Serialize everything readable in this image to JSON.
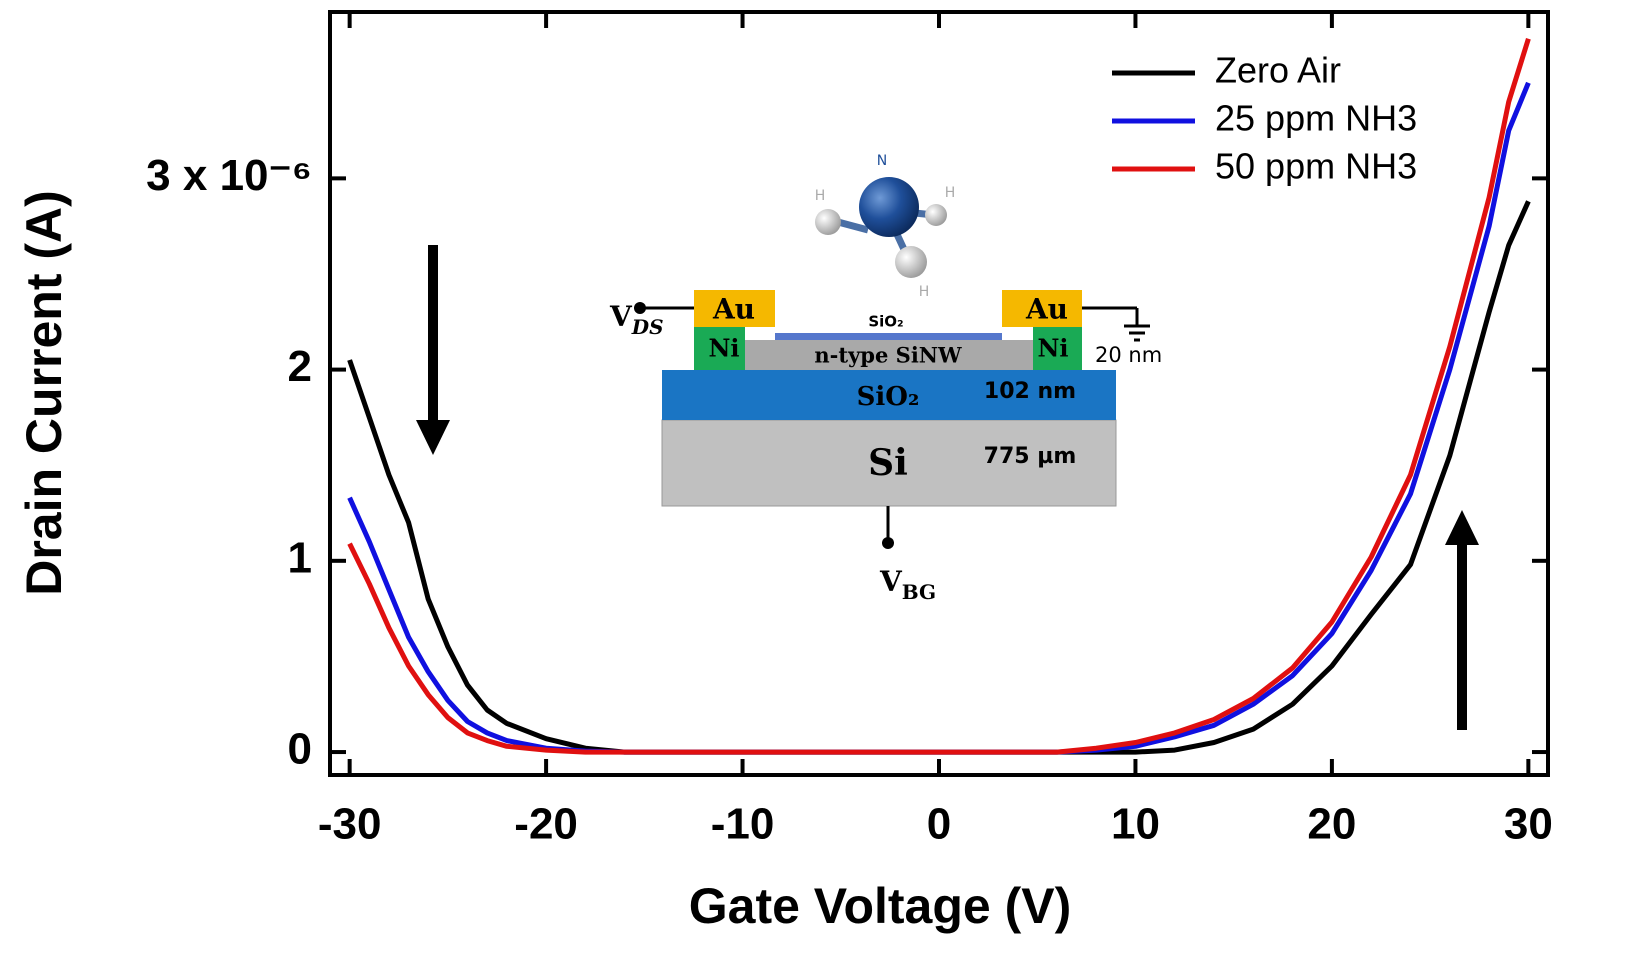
{
  "chart_data": {
    "type": "line",
    "xlabel": "Gate Voltage (V)",
    "ylabel": "Drain Current (A)",
    "x": [
      -30,
      -29,
      -28,
      -27,
      -26,
      -25,
      -24,
      -23,
      -22,
      -20,
      -18,
      -16,
      -10,
      0,
      6,
      8,
      10,
      12,
      14,
      16,
      18,
      20,
      22,
      24,
      26,
      28,
      29,
      30
    ],
    "series": [
      {
        "name": "Zero Air",
        "color": "#000000",
        "values": [
          2.05,
          1.75,
          1.45,
          1.2,
          0.8,
          0.55,
          0.35,
          0.22,
          0.15,
          0.07,
          0.02,
          0,
          0,
          0,
          0,
          0,
          0,
          0.01,
          0.05,
          0.12,
          0.25,
          0.45,
          0.72,
          0.98,
          1.55,
          2.3,
          2.65,
          2.88
        ]
      },
      {
        "name": "25 ppm NH3",
        "color": "#1010e0",
        "values": [
          1.33,
          1.1,
          0.85,
          0.6,
          0.42,
          0.27,
          0.16,
          0.1,
          0.06,
          0.02,
          0.005,
          0,
          0,
          0,
          0,
          0.01,
          0.03,
          0.08,
          0.14,
          0.25,
          0.4,
          0.62,
          0.95,
          1.35,
          2.0,
          2.75,
          3.25,
          3.5
        ]
      },
      {
        "name": "50 ppm NH3",
        "color": "#e01010",
        "values": [
          1.09,
          0.88,
          0.65,
          0.45,
          0.3,
          0.18,
          0.1,
          0.06,
          0.03,
          0.01,
          0,
          0,
          0,
          0,
          0,
          0.02,
          0.05,
          0.1,
          0.17,
          0.28,
          0.44,
          0.68,
          1.02,
          1.45,
          2.12,
          2.9,
          3.4,
          3.73
        ]
      }
    ],
    "xlim": [
      -31,
      31
    ],
    "xticks": [
      -30,
      -20,
      -10,
      0,
      10,
      20,
      30
    ],
    "ylim": [
      -0.12,
      3.87
    ],
    "yticks": [
      0,
      1,
      2,
      {
        "value": 3,
        "label": "3 x 10⁻⁶"
      }
    ],
    "legend": "upper right"
  },
  "inset": {
    "atom_n": "N",
    "atom_h1": "H",
    "atom_h2": "H",
    "atom_h3": "H",
    "vds": "V",
    "vds_sub": "DS",
    "au_left": "Au",
    "au_right": "Au",
    "oxide_thin": "SiO₂",
    "ni_left": "Ni",
    "ni_right": "Ni",
    "nanowire": "n-type SiNW",
    "thickness_nw": "20 nm",
    "oxide": "SiO₂",
    "thickness_oxide": "102 nm",
    "substrate": "Si",
    "thickness_substrate": "775 µm",
    "vbg": "V",
    "vbg_sub": "BG"
  }
}
